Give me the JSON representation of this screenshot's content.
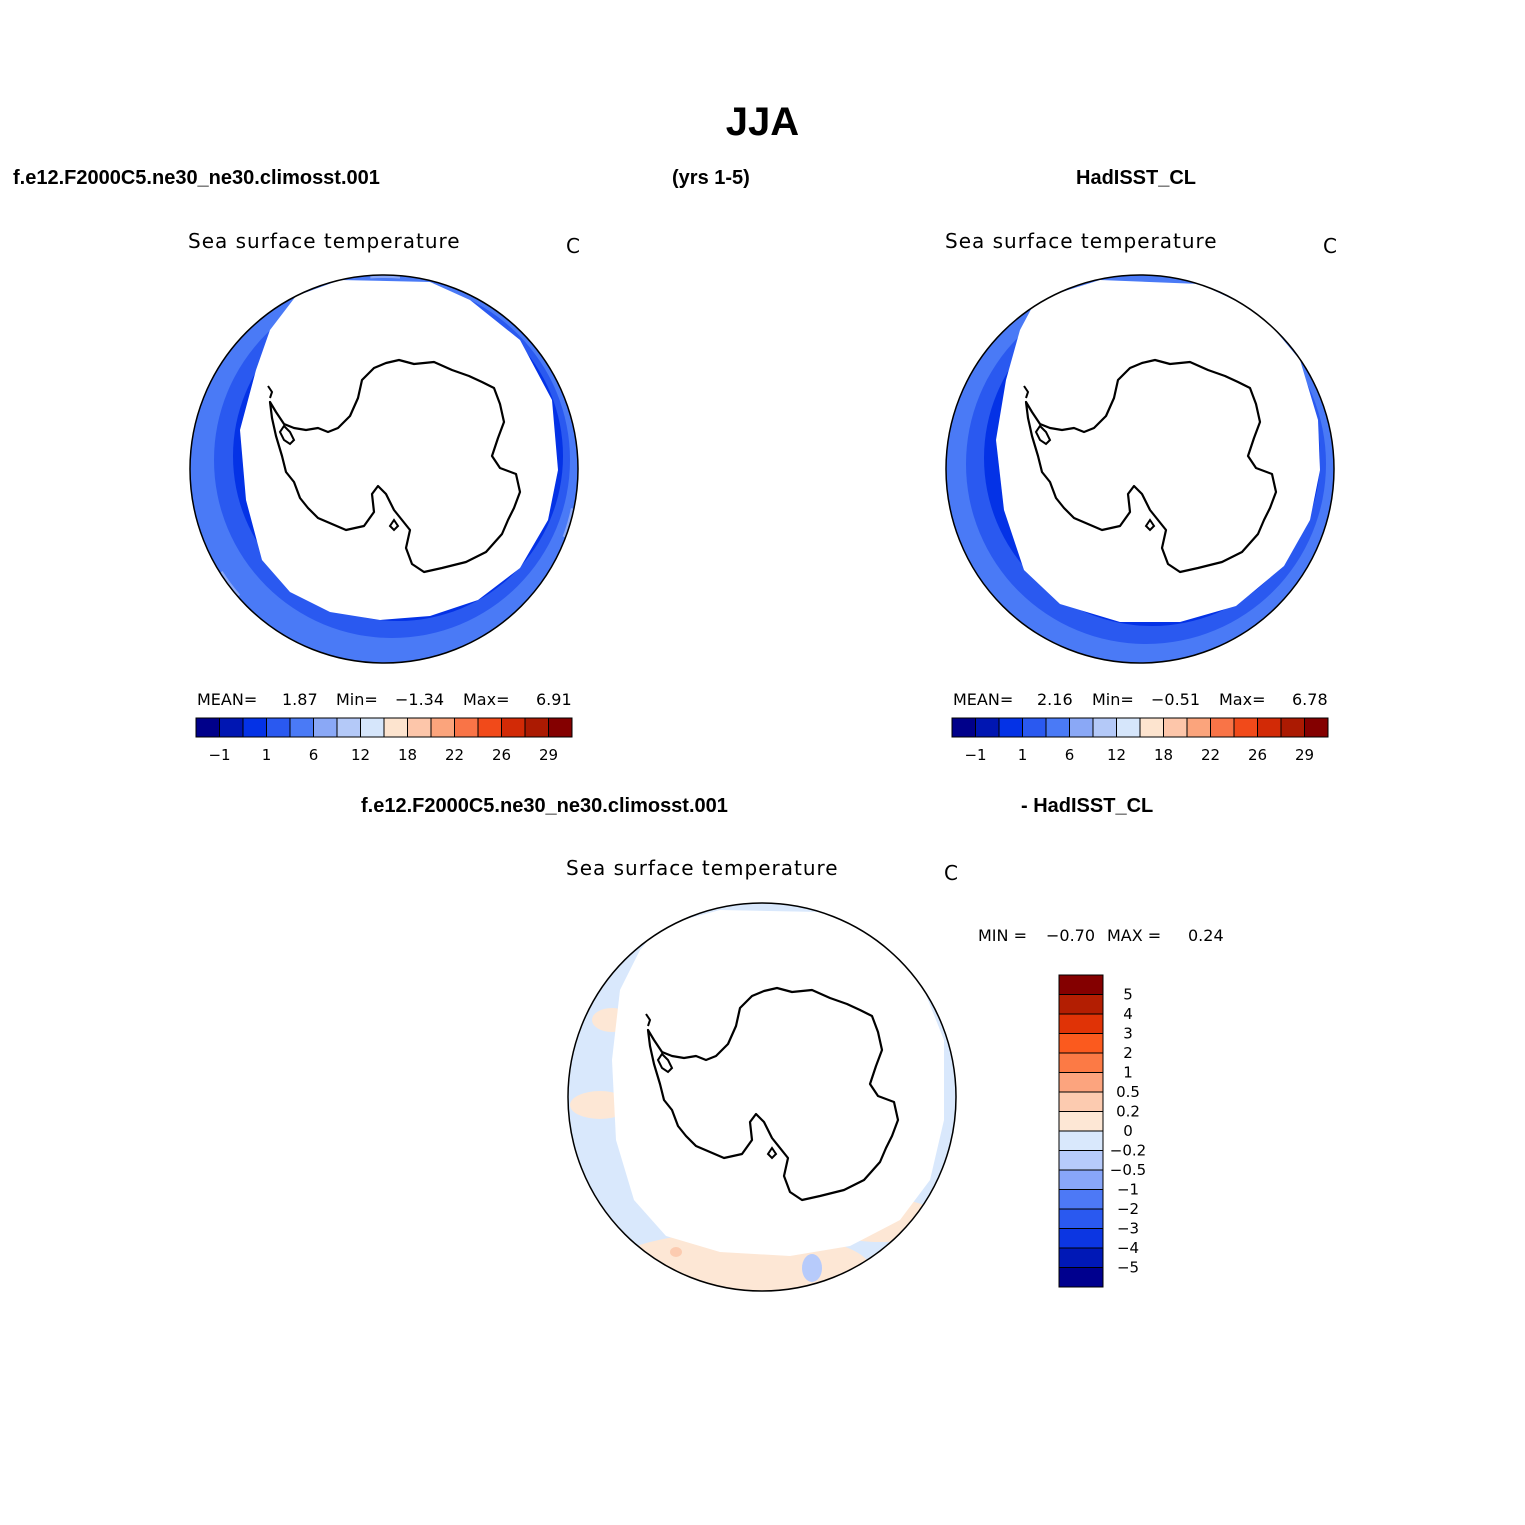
{
  "figure": {
    "title": "JJA",
    "case_name": "f.e12.F2000C5.ne30_ne30.climosst.001",
    "years": "(yrs 1-5)",
    "reference_name": "HadISST_CL",
    "diff_case_name": "f.e12.F2000C5.ne30_ne30.climosst.001",
    "diff_reference_name": "- HadISST_CL"
  },
  "panels": [
    {
      "title": "Sea surface temperature",
      "units": "C",
      "mean_label": "MEAN=",
      "mean_value": "1.87",
      "min_label": "Min=",
      "min_value": "−1.34",
      "max_label": "Max=",
      "max_value": "6.91"
    },
    {
      "title": "Sea surface temperature",
      "units": "C",
      "mean_label": "MEAN=",
      "mean_value": "2.16",
      "min_label": "Min=",
      "min_value": "−0.51",
      "max_label": "Max=",
      "max_value": "6.78"
    },
    {
      "title": "Sea surface temperature",
      "units": "C",
      "min_label": "MIN =",
      "min_value": "−0.70",
      "max_label": "MAX =",
      "max_value": "0.24"
    }
  ],
  "colorbar_abs": {
    "colors": [
      "#00008a",
      "#0016b2",
      "#0432e6",
      "#2a59f0",
      "#4a7af6",
      "#8aa8f6",
      "#b4c9f8",
      "#d6e6fb",
      "#fde4cf",
      "#fdc6aa",
      "#fba47c",
      "#f97447",
      "#f14a1a",
      "#d22a06",
      "#ab1a02",
      "#840000"
    ],
    "tick_labels": [
      "−1",
      "1",
      "6",
      "12",
      "18",
      "22",
      "26",
      "29"
    ]
  },
  "colorbar_diff": {
    "colors": [
      "#840000",
      "#b31e02",
      "#e03306",
      "#fb5a1e",
      "#fc7a45",
      "#fca47e",
      "#fccbb0",
      "#fde7d5",
      "#d9e8fc",
      "#b7cbfb",
      "#88a6fa",
      "#4d79f6",
      "#2a59f0",
      "#0c36e2",
      "#0018b6",
      "#00008e"
    ],
    "tick_labels": [
      "5",
      "4",
      "3",
      "2",
      "1",
      "0.5",
      "0.2",
      "0",
      "−0.2",
      "−0.5",
      "−1",
      "−2",
      "−3",
      "−4",
      "−5"
    ]
  }
}
